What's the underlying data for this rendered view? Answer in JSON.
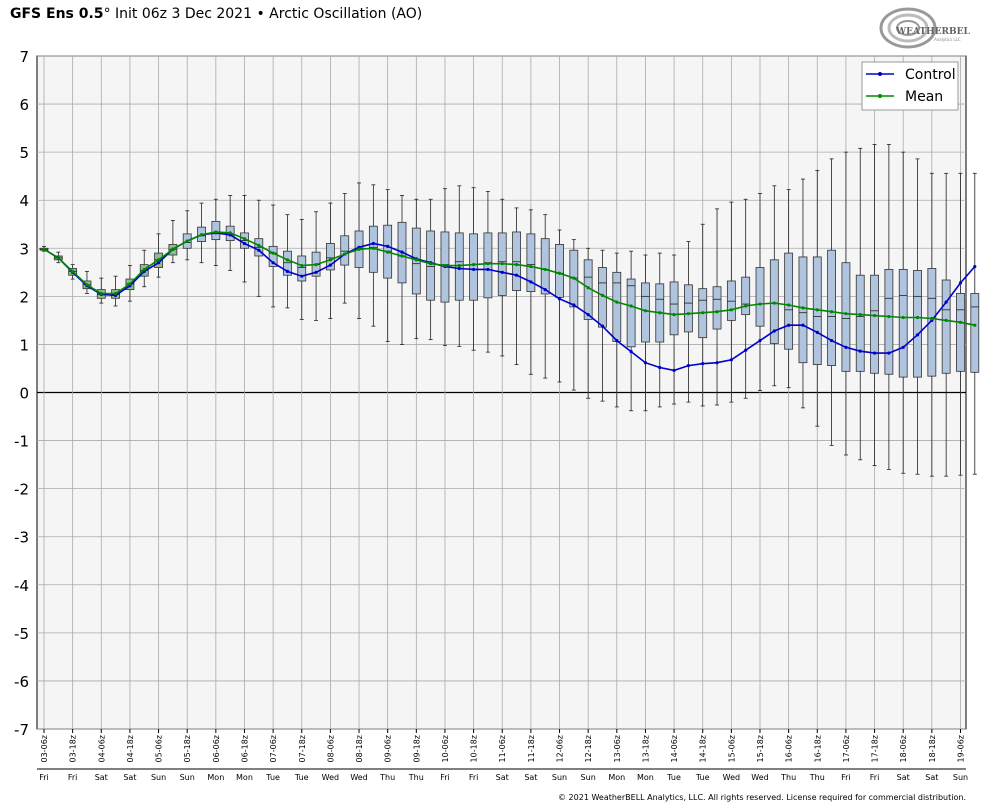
{
  "header": {
    "model": "GFS Ens 0.5",
    "degree": "°",
    "init": "Init 06z 3 Dec 2021",
    "sep": "•",
    "product": "Arctic Oscillation (AO)"
  },
  "logo": {
    "text": "WEATHERBELL",
    "subtext": "Analytics LLC"
  },
  "footer": "© 2021 WeatherBELL Analytics, LLC. All rights reserved. License required for commercial distribution.",
  "colors": {
    "control": "#0000cc",
    "mean": "#008800",
    "box_early": "#8fbc8f",
    "box_late": "#b0c4de",
    "plot_bg": "#f5f5f5",
    "grid": "#aaaaaa"
  },
  "chart_data": {
    "type": "boxplot-line",
    "title": "Arctic Oscillation (AO)",
    "ylim": [
      -7,
      7
    ],
    "yticks": [
      7,
      6,
      5,
      4,
      3,
      2,
      1,
      0,
      -1,
      -2,
      -3,
      -4,
      -5,
      -6,
      -7
    ],
    "grid": true,
    "legend_position": "top-right",
    "x_labels": [
      "03-06z",
      "03-18z",
      "04-06z",
      "04-18z",
      "05-06z",
      "05-18z",
      "06-06z",
      "06-18z",
      "07-06z",
      "07-18z",
      "08-06z",
      "08-18z",
      "09-06z",
      "09-18z",
      "10-06z",
      "10-18z",
      "11-06z",
      "11-18z",
      "12-06z",
      "12-18z",
      "13-06z",
      "13-18z",
      "14-06z",
      "14-18z",
      "15-06z",
      "15-18z",
      "16-06z",
      "16-18z",
      "17-06z",
      "17-18z",
      "18-06z",
      "18-18z",
      "19-06z"
    ],
    "x_days": [
      "Fri",
      "Fri",
      "Sat",
      "Sat",
      "Sun",
      "Sun",
      "Mon",
      "Mon",
      "Tue",
      "Tue",
      "Wed",
      "Wed",
      "Thu",
      "Thu",
      "Fri",
      "Fri",
      "Sat",
      "Sat",
      "Sun",
      "Sun",
      "Mon",
      "Mon",
      "Tue",
      "Tue",
      "Wed",
      "Wed",
      "Thu",
      "Thu",
      "Fri",
      "Fri",
      "Sat",
      "Sat",
      "Sun"
    ],
    "series": [
      {
        "name": "Control",
        "values": [
          2.98,
          2.8,
          2.5,
          2.22,
          2.04,
          2.02,
          2.22,
          2.52,
          2.7,
          2.98,
          3.15,
          3.28,
          3.32,
          3.28,
          3.1,
          2.96,
          2.7,
          2.52,
          2.42,
          2.5,
          2.65,
          2.88,
          3.02,
          3.1,
          3.04,
          2.92,
          2.78,
          2.7,
          2.62,
          2.58,
          2.56,
          2.56,
          2.5,
          2.44,
          2.3,
          2.14,
          1.95,
          1.82,
          1.62,
          1.38,
          1.08,
          0.85,
          0.62,
          0.52,
          0.46,
          0.56,
          0.6,
          0.62,
          0.68,
          0.88,
          1.08,
          1.28,
          1.4,
          1.4,
          1.25,
          1.08,
          0.94,
          0.86,
          0.82,
          0.82,
          0.94,
          1.2,
          1.5,
          1.88,
          2.28,
          2.62
        ]
      },
      {
        "name": "Mean",
        "values": [
          2.98,
          2.8,
          2.52,
          2.24,
          2.06,
          2.06,
          2.26,
          2.56,
          2.76,
          2.98,
          3.15,
          3.28,
          3.34,
          3.32,
          3.2,
          3.06,
          2.9,
          2.76,
          2.64,
          2.66,
          2.76,
          2.88,
          2.98,
          3.0,
          2.92,
          2.84,
          2.76,
          2.68,
          2.64,
          2.64,
          2.66,
          2.68,
          2.68,
          2.66,
          2.62,
          2.56,
          2.48,
          2.38,
          2.18,
          2.02,
          1.88,
          1.8,
          1.7,
          1.66,
          1.62,
          1.64,
          1.66,
          1.68,
          1.72,
          1.8,
          1.84,
          1.86,
          1.82,
          1.76,
          1.72,
          1.68,
          1.64,
          1.62,
          1.6,
          1.58,
          1.56,
          1.56,
          1.54,
          1.5,
          1.46,
          1.4
        ]
      }
    ],
    "boxes": {
      "q1": [
        2.96,
        2.76,
        2.44,
        2.16,
        1.96,
        1.96,
        2.14,
        2.42,
        2.6,
        2.86,
        3.0,
        3.14,
        3.18,
        3.16,
        3.0,
        2.84,
        2.62,
        2.44,
        2.32,
        2.42,
        2.55,
        2.65,
        2.6,
        2.5,
        2.38,
        2.28,
        2.05,
        1.92,
        1.88,
        1.92,
        1.92,
        1.97,
        2.02,
        2.12,
        2.1,
        2.05,
        1.98,
        1.78,
        1.52,
        1.36,
        1.06,
        0.95,
        1.05,
        1.05,
        1.2,
        1.26,
        1.14,
        1.32,
        1.5,
        1.62,
        1.38,
        1.02,
        0.9,
        0.62,
        0.58,
        0.56,
        0.44,
        0.44,
        0.4,
        0.38,
        0.32,
        0.32,
        0.34,
        0.4,
        0.44,
        0.42
      ],
      "median": [
        2.98,
        2.8,
        2.52,
        2.24,
        2.04,
        2.04,
        2.26,
        2.54,
        2.76,
        2.98,
        3.12,
        3.26,
        3.32,
        3.28,
        3.16,
        3.02,
        2.9,
        2.7,
        2.6,
        2.66,
        2.8,
        2.94,
        3.0,
        3.02,
        2.94,
        2.84,
        2.68,
        2.62,
        2.66,
        2.72,
        2.66,
        2.7,
        2.72,
        2.72,
        2.66,
        2.56,
        2.48,
        2.38,
        2.4,
        2.28,
        2.28,
        2.22,
        2.0,
        1.94,
        1.84,
        1.86,
        1.92,
        1.94,
        1.9,
        1.84,
        1.84,
        1.86,
        1.72,
        1.66,
        1.58,
        1.58,
        1.54,
        1.58,
        1.7,
        1.96,
        2.02,
        2.0,
        1.96,
        1.72,
        1.72,
        1.78
      ],
      "q3": [
        3.0,
        2.84,
        2.58,
        2.32,
        2.14,
        2.14,
        2.36,
        2.66,
        2.9,
        3.08,
        3.3,
        3.44,
        3.56,
        3.46,
        3.32,
        3.2,
        3.04,
        2.94,
        2.84,
        2.92,
        3.1,
        3.26,
        3.36,
        3.46,
        3.48,
        3.54,
        3.42,
        3.36,
        3.34,
        3.32,
        3.3,
        3.32,
        3.32,
        3.34,
        3.3,
        3.2,
        3.08,
        2.96,
        2.76,
        2.6,
        2.5,
        2.36,
        2.28,
        2.26,
        2.3,
        2.24,
        2.16,
        2.2,
        2.32,
        2.4,
        2.6,
        2.76,
        2.9,
        2.82,
        2.82,
        2.96,
        2.7,
        2.44,
        2.44,
        2.56,
        2.56,
        2.54,
        2.58,
        2.34,
        2.06,
        2.06
      ],
      "min": [
        2.94,
        2.7,
        2.36,
        2.06,
        1.86,
        1.8,
        1.9,
        2.2,
        2.4,
        2.7,
        2.76,
        2.7,
        2.64,
        2.54,
        2.3,
        2.0,
        1.78,
        1.76,
        1.52,
        1.5,
        1.54,
        1.86,
        1.54,
        1.38,
        1.06,
        1.0,
        1.12,
        1.1,
        0.98,
        0.96,
        0.88,
        0.84,
        0.76,
        0.58,
        0.38,
        0.3,
        0.22,
        0.05,
        -0.12,
        -0.18,
        -0.3,
        -0.38,
        -0.38,
        -0.3,
        -0.24,
        -0.2,
        -0.28,
        -0.26,
        -0.2,
        -0.12,
        0.04,
        0.14,
        0.1,
        -0.32,
        -0.7,
        -1.1,
        -1.3,
        -1.4,
        -1.52,
        -1.6,
        -1.68,
        -1.7,
        -1.74,
        -1.74,
        -1.72,
        -1.7
      ],
      "max": [
        3.04,
        2.92,
        2.66,
        2.52,
        2.38,
        2.42,
        2.64,
        2.96,
        3.3,
        3.58,
        3.78,
        3.94,
        4.02,
        4.1,
        4.1,
        4.0,
        3.9,
        3.7,
        3.6,
        3.76,
        3.94,
        4.14,
        4.36,
        4.32,
        4.22,
        4.1,
        4.02,
        4.02,
        4.24,
        4.3,
        4.26,
        4.18,
        4.02,
        3.84,
        3.8,
        3.7,
        3.38,
        3.18,
        3.0,
        2.96,
        2.9,
        2.94,
        2.86,
        2.9,
        2.86,
        3.14,
        3.5,
        3.82,
        3.96,
        4.02,
        4.14,
        4.3,
        4.22,
        4.44,
        4.62,
        4.86,
        5.0,
        5.08,
        5.16,
        5.16,
        5.0,
        4.86,
        4.56,
        4.56,
        4.56,
        4.56
      ]
    }
  }
}
